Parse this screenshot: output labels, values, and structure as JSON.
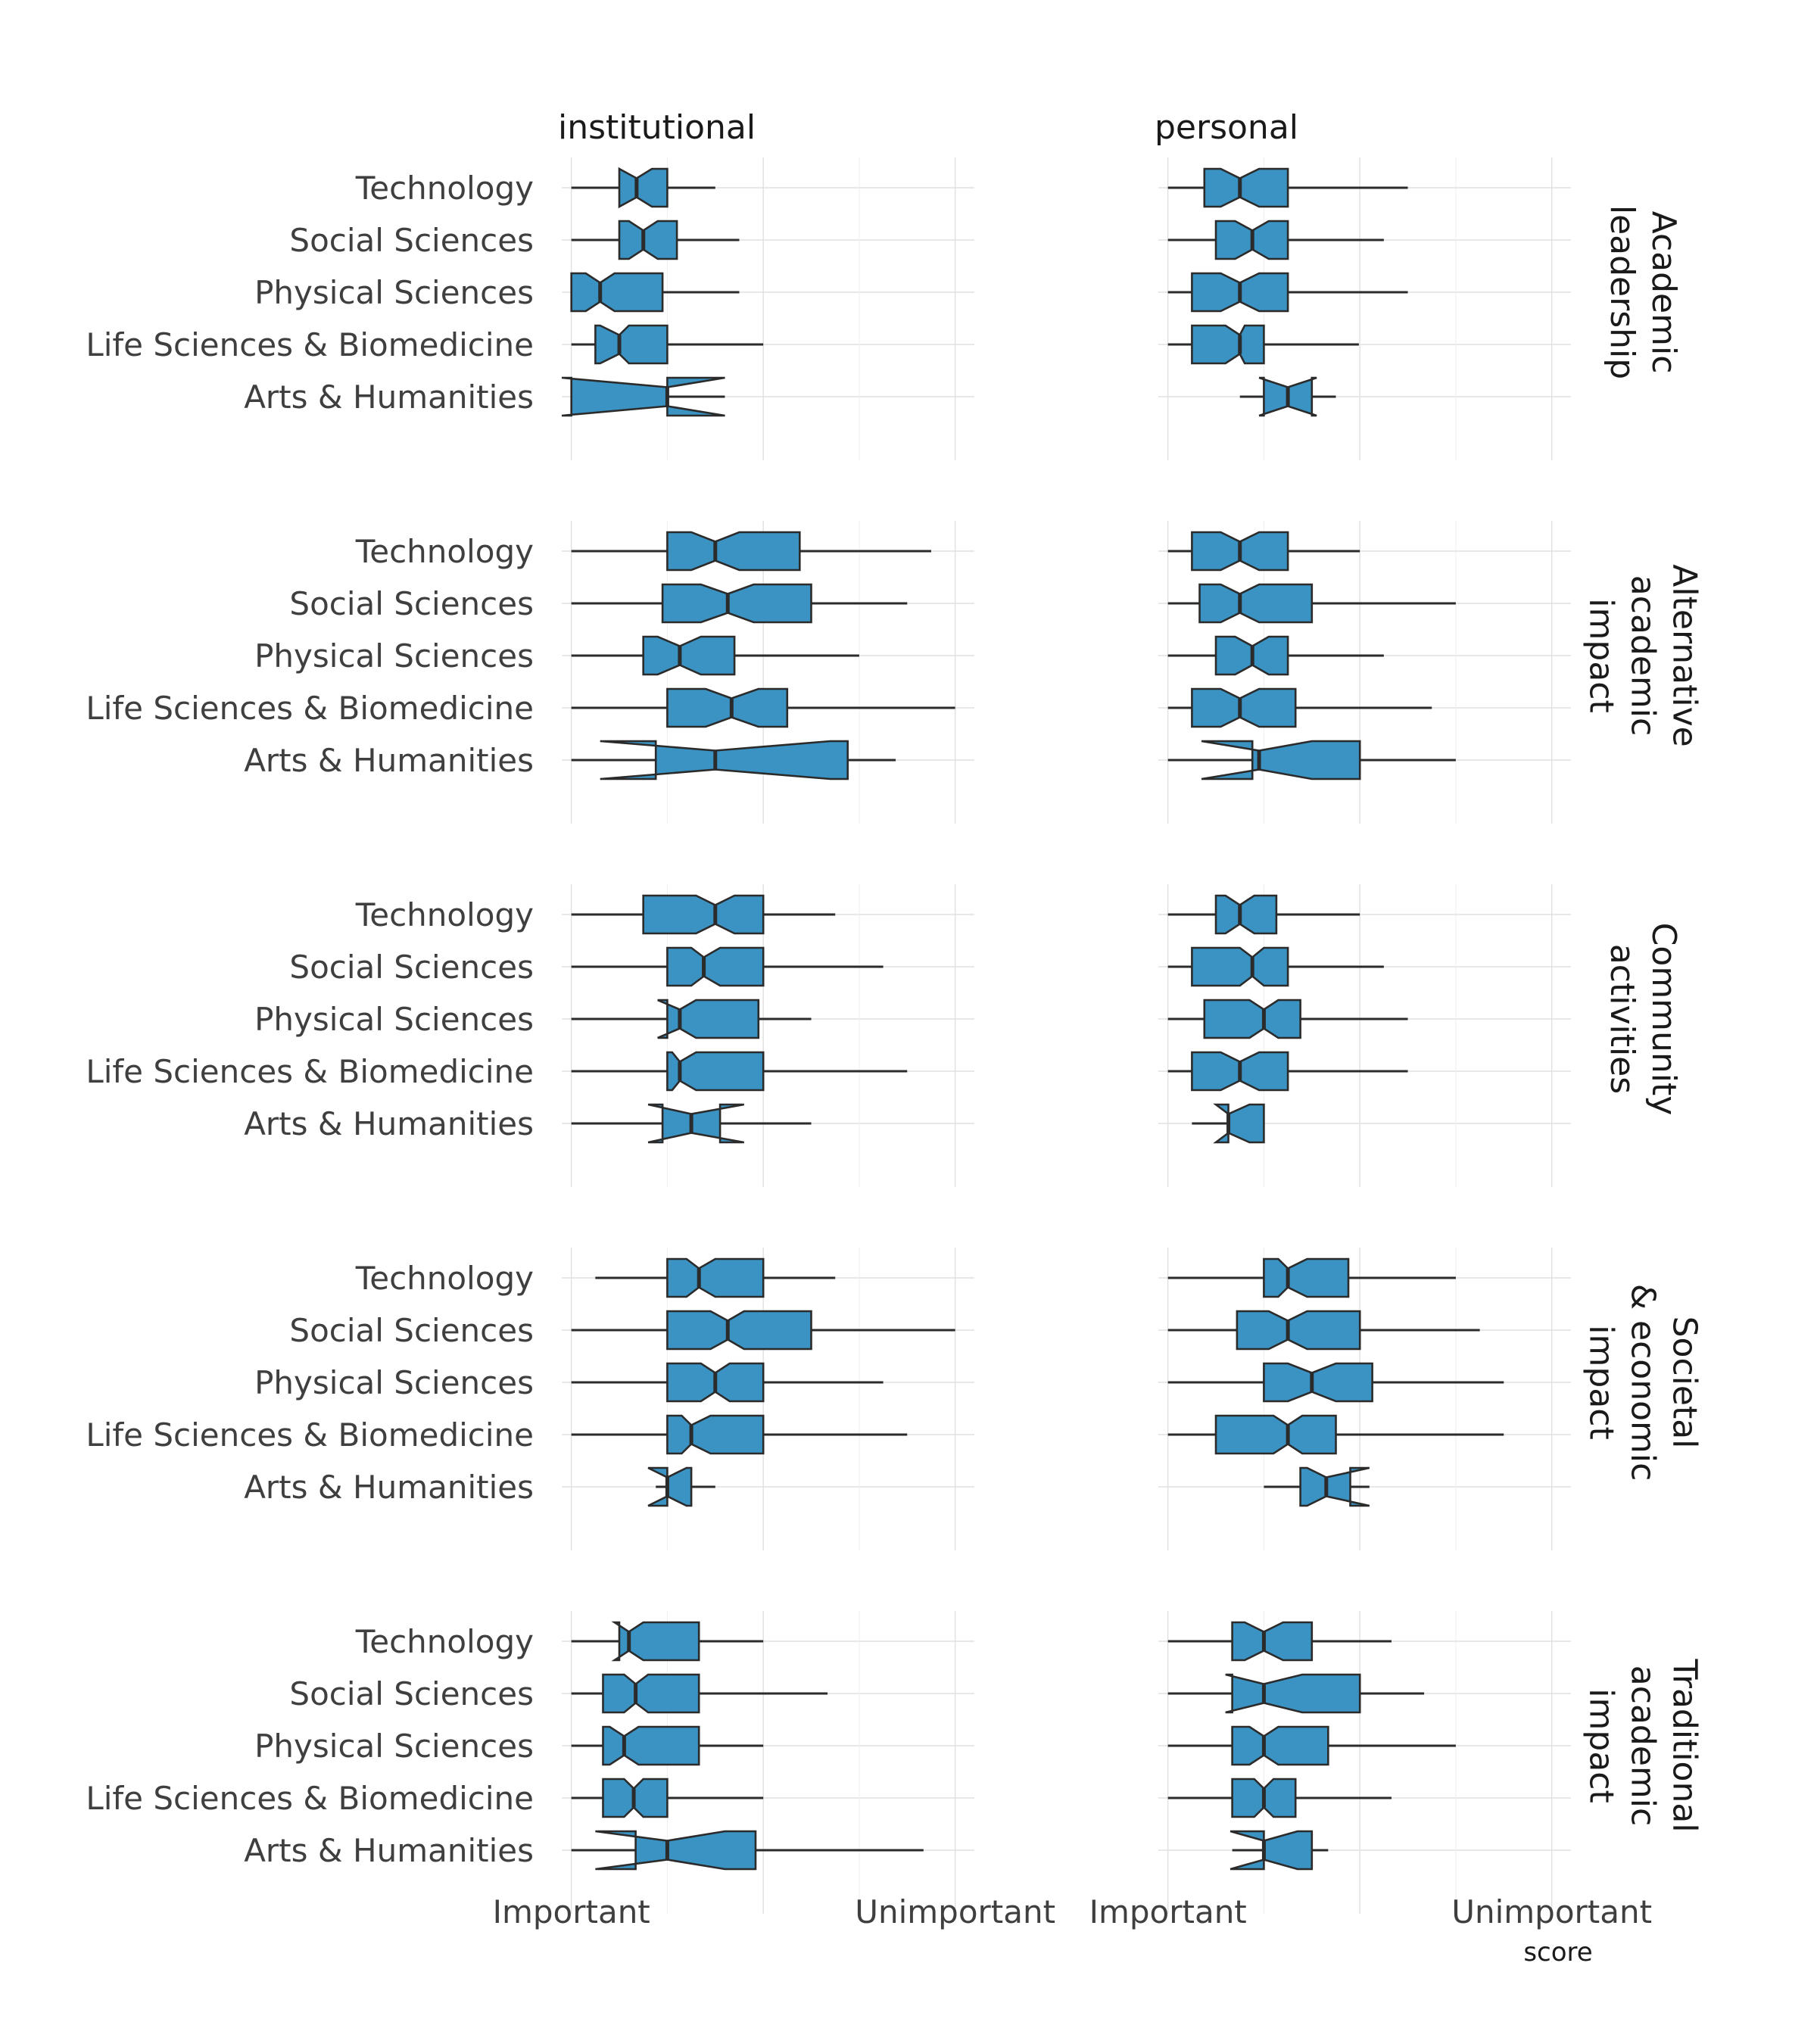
{
  "chart_data": {
    "type": "notched-boxplot",
    "orientation": "horizontal",
    "xlabel": "score",
    "x_tick_labels": [
      "Important",
      "Unimportant"
    ],
    "x_tick_values": [
      1,
      5
    ],
    "xlim": [
      0.9,
      5.2
    ],
    "colors": {
      "box_fill": "#3a93c3",
      "box_stroke": "#2b2b2b",
      "whisker": "#2b2b2b",
      "grid": "#e0e0e0"
    },
    "columns": [
      "institutional",
      "personal"
    ],
    "categories": [
      "Technology",
      "Social Sciences",
      "Physical Sciences",
      "Life Sciences & Biomedicine",
      "Arts & Humanities"
    ],
    "rows": [
      {
        "label": "Academic\nleadership",
        "panels": [
          [
            {
              "wmin": 1.0,
              "q1": 1.5,
              "nlo": 1.5,
              "med": 1.68,
              "nhi": 1.84,
              "q3": 2.0,
              "wmax": 2.5
            },
            {
              "wmin": 1.0,
              "q1": 1.5,
              "nlo": 1.6,
              "med": 1.75,
              "nhi": 1.9,
              "q3": 2.1,
              "wmax": 2.75
            },
            {
              "wmin": 1.0,
              "q1": 1.0,
              "nlo": 1.15,
              "med": 1.3,
              "nhi": 1.45,
              "q3": 1.95,
              "wmax": 2.75
            },
            {
              "wmin": 1.0,
              "q1": 1.25,
              "nlo": 1.3,
              "med": 1.5,
              "nhi": 1.6,
              "q3": 2.0,
              "wmax": 3.0
            },
            {
              "wmin": 1.0,
              "q1": 1.0,
              "nlo": 0.9,
              "med": 2.0,
              "nhi": 2.6,
              "q3": 2.0,
              "wmax": 2.6
            }
          ],
          [
            {
              "wmin": 1.0,
              "q1": 1.38,
              "nlo": 1.55,
              "med": 1.75,
              "nhi": 1.95,
              "q3": 2.25,
              "wmax": 3.5
            },
            {
              "wmin": 1.0,
              "q1": 1.5,
              "nlo": 1.7,
              "med": 1.88,
              "nhi": 2.05,
              "q3": 2.25,
              "wmax": 3.25
            },
            {
              "wmin": 1.0,
              "q1": 1.25,
              "nlo": 1.55,
              "med": 1.75,
              "nhi": 1.95,
              "q3": 2.25,
              "wmax": 3.5
            },
            {
              "wmin": 1.0,
              "q1": 1.25,
              "nlo": 1.6,
              "med": 1.75,
              "nhi": 1.8,
              "q3": 2.0,
              "wmax": 2.99
            },
            {
              "wmin": 1.75,
              "q1": 2.0,
              "nlo": 1.95,
              "med": 2.25,
              "nhi": 2.55,
              "q3": 2.5,
              "wmax": 2.75
            }
          ]
        ]
      },
      {
        "label": "Alternative\nacademic\nimpact",
        "panels": [
          [
            {
              "wmin": 1.0,
              "q1": 2.0,
              "nlo": 2.25,
              "med": 2.5,
              "nhi": 2.75,
              "q3": 3.38,
              "wmax": 4.75
            },
            {
              "wmin": 1.0,
              "q1": 1.95,
              "nlo": 2.35,
              "med": 2.63,
              "nhi": 2.9,
              "q3": 3.5,
              "wmax": 4.5
            },
            {
              "wmin": 1.0,
              "q1": 1.75,
              "nlo": 1.9,
              "med": 2.13,
              "nhi": 2.35,
              "q3": 2.7,
              "wmax": 4.0
            },
            {
              "wmin": 1.0,
              "q1": 2.0,
              "nlo": 2.4,
              "med": 2.67,
              "nhi": 2.95,
              "q3": 3.25,
              "wmax": 5.0
            },
            {
              "wmin": 1.0,
              "q1": 1.88,
              "nlo": 1.3,
              "med": 2.5,
              "nhi": 3.7,
              "q3": 3.88,
              "wmax": 4.38
            }
          ],
          [
            {
              "wmin": 1.0,
              "q1": 1.25,
              "nlo": 1.55,
              "med": 1.75,
              "nhi": 1.95,
              "q3": 2.25,
              "wmax": 3.0
            },
            {
              "wmin": 1.0,
              "q1": 1.33,
              "nlo": 1.55,
              "med": 1.75,
              "nhi": 1.95,
              "q3": 2.5,
              "wmax": 4.0
            },
            {
              "wmin": 1.0,
              "q1": 1.5,
              "nlo": 1.7,
              "med": 1.88,
              "nhi": 2.05,
              "q3": 2.25,
              "wmax": 3.25
            },
            {
              "wmin": 1.0,
              "q1": 1.25,
              "nlo": 1.55,
              "med": 1.75,
              "nhi": 1.95,
              "q3": 2.33,
              "wmax": 3.75
            },
            {
              "wmin": 1.0,
              "q1": 1.88,
              "nlo": 1.35,
              "med": 1.95,
              "nhi": 2.5,
              "q3": 3.0,
              "wmax": 4.0
            }
          ]
        ]
      },
      {
        "label": "Community\nactivities",
        "panels": [
          [
            {
              "wmin": 1.0,
              "q1": 1.75,
              "nlo": 2.3,
              "med": 2.5,
              "nhi": 2.7,
              "q3": 3.0,
              "wmax": 3.75
            },
            {
              "wmin": 1.0,
              "q1": 2.0,
              "nlo": 2.25,
              "med": 2.38,
              "nhi": 2.55,
              "q3": 3.0,
              "wmax": 4.25
            },
            {
              "wmin": 1.0,
              "q1": 2.0,
              "nlo": 1.9,
              "med": 2.13,
              "nhi": 2.3,
              "q3": 2.95,
              "wmax": 3.5
            },
            {
              "wmin": 1.0,
              "q1": 2.0,
              "nlo": 2.05,
              "med": 2.13,
              "nhi": 2.3,
              "q3": 3.0,
              "wmax": 4.5
            },
            {
              "wmin": 1.0,
              "q1": 1.95,
              "nlo": 1.8,
              "med": 2.25,
              "nhi": 2.8,
              "q3": 2.55,
              "wmax": 3.5
            }
          ],
          [
            {
              "wmin": 1.0,
              "q1": 1.5,
              "nlo": 1.6,
              "med": 1.75,
              "nhi": 1.9,
              "q3": 2.13,
              "wmax": 3.0
            },
            {
              "wmin": 1.0,
              "q1": 1.25,
              "nlo": 1.75,
              "med": 1.88,
              "nhi": 2.0,
              "q3": 2.25,
              "wmax": 3.25
            },
            {
              "wmin": 1.0,
              "q1": 1.38,
              "nlo": 1.85,
              "med": 2.0,
              "nhi": 2.15,
              "q3": 2.38,
              "wmax": 3.5
            },
            {
              "wmin": 1.0,
              "q1": 1.25,
              "nlo": 1.55,
              "med": 1.75,
              "nhi": 1.95,
              "q3": 2.25,
              "wmax": 3.5
            },
            {
              "wmin": 1.25,
              "q1": 1.63,
              "nlo": 1.5,
              "med": 1.63,
              "nhi": 1.85,
              "q3": 2.0,
              "wmax": 2.0
            }
          ]
        ]
      },
      {
        "label": "Societal\n& economic\nimpact",
        "panels": [
          [
            {
              "wmin": 1.25,
              "q1": 2.0,
              "nlo": 2.2,
              "med": 2.33,
              "nhi": 2.5,
              "q3": 3.0,
              "wmax": 3.75
            },
            {
              "wmin": 1.0,
              "q1": 2.0,
              "nlo": 2.45,
              "med": 2.63,
              "nhi": 2.8,
              "q3": 3.5,
              "wmax": 5.0
            },
            {
              "wmin": 1.0,
              "q1": 2.0,
              "nlo": 2.35,
              "med": 2.5,
              "nhi": 2.65,
              "q3": 3.0,
              "wmax": 4.25
            },
            {
              "wmin": 1.0,
              "q1": 2.0,
              "nlo": 2.15,
              "med": 2.25,
              "nhi": 2.45,
              "q3": 3.0,
              "wmax": 4.5
            },
            {
              "wmin": 1.88,
              "q1": 2.0,
              "nlo": 1.8,
              "med": 2.0,
              "nhi": 2.2,
              "q3": 2.25,
              "wmax": 2.5
            }
          ],
          [
            {
              "wmin": 1.0,
              "q1": 2.0,
              "nlo": 2.15,
              "med": 2.25,
              "nhi": 2.45,
              "q3": 2.88,
              "wmax": 4.0
            },
            {
              "wmin": 1.0,
              "q1": 1.72,
              "nlo": 2.05,
              "med": 2.25,
              "nhi": 2.45,
              "q3": 3.0,
              "wmax": 4.25
            },
            {
              "wmin": 1.0,
              "q1": 2.0,
              "nlo": 2.25,
              "med": 2.5,
              "nhi": 2.75,
              "q3": 3.13,
              "wmax": 4.5
            },
            {
              "wmin": 1.0,
              "q1": 1.5,
              "nlo": 2.1,
              "med": 2.25,
              "nhi": 2.4,
              "q3": 2.75,
              "wmax": 4.5
            },
            {
              "wmin": 2.0,
              "q1": 2.38,
              "nlo": 2.45,
              "med": 2.65,
              "nhi": 3.1,
              "q3": 2.9,
              "wmax": 3.1
            }
          ]
        ]
      },
      {
        "label": "Traditional\nacademic\nimpact",
        "panels": [
          [
            {
              "wmin": 1.0,
              "q1": 1.5,
              "nlo": 1.45,
              "med": 1.6,
              "nhi": 1.75,
              "q3": 2.33,
              "wmax": 3.0
            },
            {
              "wmin": 1.0,
              "q1": 1.33,
              "nlo": 1.55,
              "med": 1.67,
              "nhi": 1.8,
              "q3": 2.33,
              "wmax": 3.67
            },
            {
              "wmin": 1.0,
              "q1": 1.33,
              "nlo": 1.4,
              "med": 1.55,
              "nhi": 1.7,
              "q3": 2.33,
              "wmax": 3.0
            },
            {
              "wmin": 1.0,
              "q1": 1.33,
              "nlo": 1.55,
              "med": 1.65,
              "nhi": 1.75,
              "q3": 2.0,
              "wmax": 3.0
            },
            {
              "wmin": 1.0,
              "q1": 1.67,
              "nlo": 1.25,
              "med": 2.0,
              "nhi": 2.6,
              "q3": 2.92,
              "wmax": 4.67
            }
          ],
          [
            {
              "wmin": 1.0,
              "q1": 1.67,
              "nlo": 1.8,
              "med": 2.0,
              "nhi": 2.2,
              "q3": 2.5,
              "wmax": 3.33
            },
            {
              "wmin": 1.0,
              "q1": 1.67,
              "nlo": 1.6,
              "med": 2.0,
              "nhi": 2.4,
              "q3": 3.0,
              "wmax": 3.67
            },
            {
              "wmin": 1.0,
              "q1": 1.67,
              "nlo": 1.85,
              "med": 2.0,
              "nhi": 2.15,
              "q3": 2.67,
              "wmax": 4.0
            },
            {
              "wmin": 1.0,
              "q1": 1.67,
              "nlo": 1.9,
              "med": 2.0,
              "nhi": 2.1,
              "q3": 2.33,
              "wmax": 3.33
            },
            {
              "wmin": 1.67,
              "q1": 2.0,
              "nlo": 1.65,
              "med": 2.0,
              "nhi": 2.35,
              "q3": 2.5,
              "wmax": 2.67
            }
          ]
        ]
      }
    ]
  }
}
